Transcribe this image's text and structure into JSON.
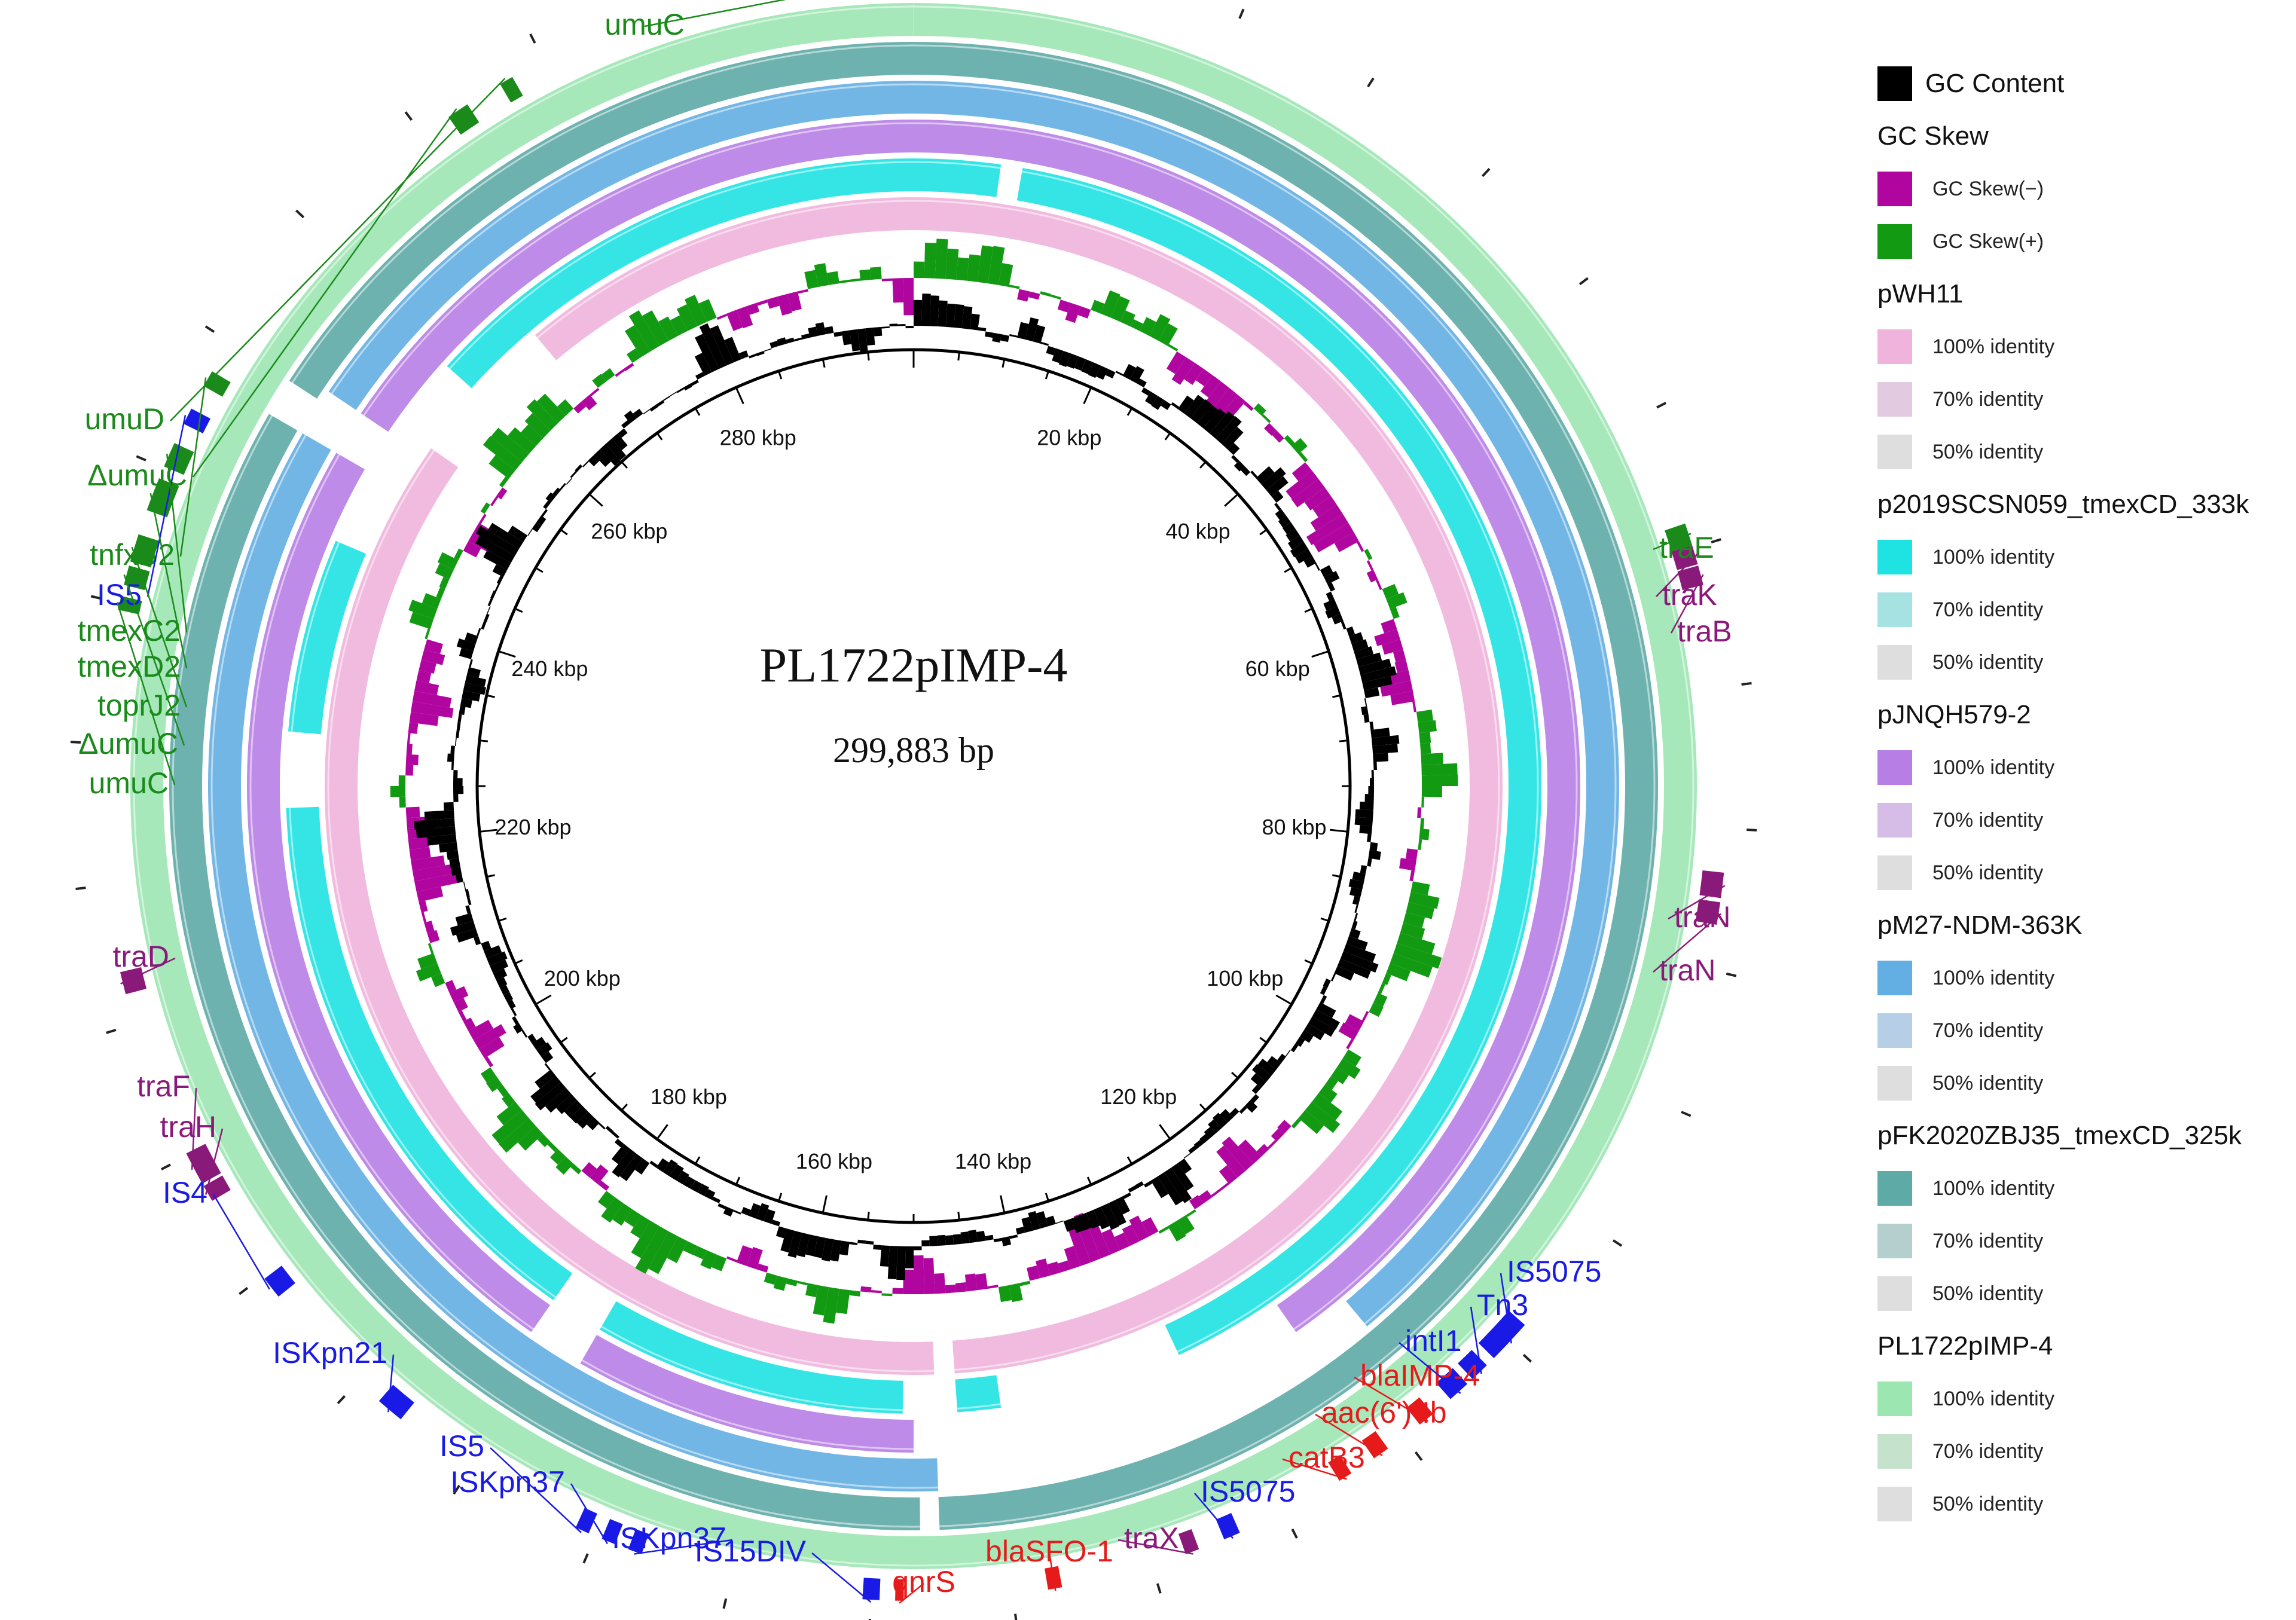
{
  "plasmid": {
    "name": "PL1722pIMP-4",
    "length_label": "299,883 bp",
    "length_bp": 299883
  },
  "scale_ticks": [
    "20 kbp",
    "40 kbp",
    "60 kbp",
    "80 kbp",
    "100 kbp",
    "120 kbp",
    "140 kbp",
    "160 kbp",
    "180 kbp",
    "200 kbp",
    "220 kbp",
    "240 kbp",
    "260 kbp",
    "280 kbp"
  ],
  "legend": {
    "gc_content": {
      "label": "GC Content",
      "color": "#000000"
    },
    "gc_skew": {
      "title": "GC Skew",
      "neg": {
        "label": "GC Skew(−)",
        "color": "#b0069f"
      },
      "pos": {
        "label": "GC Skew(+)",
        "color": "#129a12"
      }
    },
    "tracks": [
      {
        "name": "pWH11",
        "colors": [
          "#f0b4dc",
          "#e2cae0",
          "#dedede"
        ],
        "levels": [
          "100% identity",
          "70% identity",
          "50% identity"
        ]
      },
      {
        "name": "p2019SCSN059_tmexCD_333k",
        "colors": [
          "#1fe2e2",
          "#a6e2e2",
          "#dedede"
        ],
        "levels": [
          "100% identity",
          "70% identity",
          "50% identity"
        ]
      },
      {
        "name": "pJNQH579-2",
        "colors": [
          "#b77ee6",
          "#d6bde8",
          "#dedede"
        ],
        "levels": [
          "100% identity",
          "70% identity",
          "50% identity"
        ]
      },
      {
        "name": "pM27-NDM-363K",
        "colors": [
          "#63aee3",
          "#b6cfe6",
          "#dedede"
        ],
        "levels": [
          "100% identity",
          "70% identity",
          "50% identity"
        ]
      },
      {
        "name": "pFK2020ZBJ35_tmexCD_325k",
        "colors": [
          "#5daaa6",
          "#b4cfcd",
          "#dedede"
        ],
        "levels": [
          "100% identity",
          "70% identity",
          "50% identity"
        ]
      },
      {
        "name": "PL1722pIMP-4",
        "colors": [
          "#9ce6b2",
          "#c5e3cc",
          "#dedede"
        ],
        "levels": [
          "100% identity",
          "70% identity",
          "50% identity"
        ]
      }
    ]
  },
  "gene_labels": [
    {
      "text": "umuC",
      "color": "#1a8a1a"
    },
    {
      "text": "umuD",
      "color": "#1a8a1a"
    },
    {
      "text": "ΔumuC",
      "color": "#1a8a1a"
    },
    {
      "text": "tnfxB2",
      "color": "#1a8a1a"
    },
    {
      "text": "IS5",
      "color": "#1a1ae6"
    },
    {
      "text": "tmexC2",
      "color": "#1a8a1a"
    },
    {
      "text": "tmexD2",
      "color": "#1a8a1a"
    },
    {
      "text": "toprJ2",
      "color": "#1a8a1a"
    },
    {
      "text": "ΔumuC",
      "color": "#1a8a1a"
    },
    {
      "text": "umuC",
      "color": "#1a8a1a"
    },
    {
      "text": "traD",
      "color": "#8a1a7a"
    },
    {
      "text": "traF",
      "color": "#8a1a7a"
    },
    {
      "text": "traH",
      "color": "#8a1a7a"
    },
    {
      "text": "IS4",
      "color": "#1a1ae6"
    },
    {
      "text": "ISKpn21",
      "color": "#1a1ae6"
    },
    {
      "text": "IS5",
      "color": "#1a1ae6"
    },
    {
      "text": "ISKpn37",
      "color": "#1a1ae6"
    },
    {
      "text": "ISKpn37",
      "color": "#1a1ae6"
    },
    {
      "text": "IS15DIV",
      "color": "#1a1ae6"
    },
    {
      "text": "qnrS",
      "color": "#e61a1a"
    },
    {
      "text": "blaSFO-1",
      "color": "#e61a1a"
    },
    {
      "text": "traX",
      "color": "#8a1a7a"
    },
    {
      "text": "IS5075",
      "color": "#1a1ae6"
    },
    {
      "text": "catB3",
      "color": "#e61a1a"
    },
    {
      "text": "aac(6')-Ib",
      "color": "#e61a1a"
    },
    {
      "text": "blaIMP-4",
      "color": "#e61a1a"
    },
    {
      "text": "intI1",
      "color": "#1a1ae6"
    },
    {
      "text": "Tn3",
      "color": "#1a1ae6"
    },
    {
      "text": "IS5075",
      "color": "#1a1ae6"
    },
    {
      "text": "traE",
      "color": "#1a8a1a"
    },
    {
      "text": "traK",
      "color": "#8a1a7a"
    },
    {
      "text": "traB",
      "color": "#8a1a7a"
    },
    {
      "text": "traN",
      "color": "#8a1a7a"
    },
    {
      "text": "traN",
      "color": "#8a1a7a"
    }
  ]
}
